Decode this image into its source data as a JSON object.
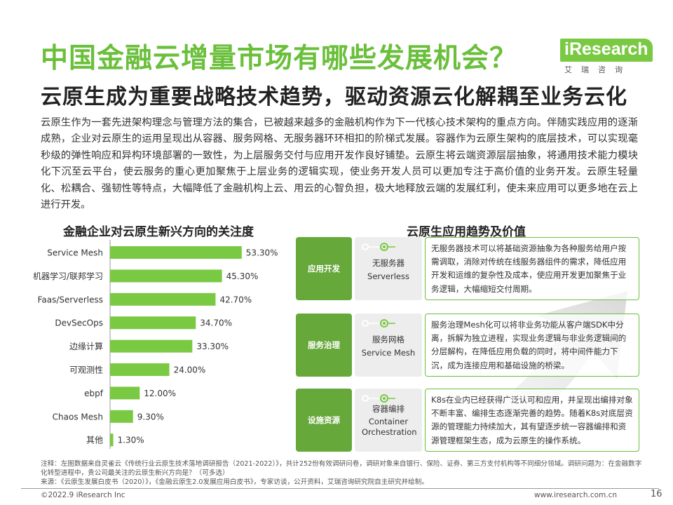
{
  "header": {
    "title": "中国金融云增量市场有哪些发展机会？",
    "subtitle": "云原生成为重要战略技术趋势，驱动资源云化解耦至业务云化"
  },
  "logo": {
    "name": "iResearch",
    "sub": "艾瑞咨询"
  },
  "intro": "云原生作为一套先进架构理念与管理方法的集合，已被越来越多的金融机构作为下一代核心技术架构的重点方向。伴随实践应用的逐渐成熟，企业对云原生的运用呈现出从容器、服务网格、无服务器环环相扣的阶梯式发展。容器作为云原生架构的底层技术，可以实现毫秒级的弹性响应和异构环境部署的一致性，为上层服务交付与应用开发作良好铺垫。云原生将云端资源层层抽象，将通用技术能力模块化下沉至云平台，使云服务的重心更加聚焦于上层业务的逻辑实现，使业务开发人员可以更加专注于高价值的业务开发。云原生轻量化、松耦合、强韧性等特点，大幅降低了金融机构上云、用云的心智负担，极大地释放云端的发展红利，使未来应用可以更多地在云上进行开发。",
  "chart_data": {
    "type": "bar",
    "orientation": "horizontal",
    "title": "金融企业对云原生新兴方向的关注度",
    "categories": [
      "Service Mesh",
      "机器学习/联邦学习",
      "Faas/Serverless",
      "DevSecOps",
      "边缘计算",
      "可观测性",
      "ebpf",
      "Chaos Mesh",
      "其他"
    ],
    "values": [
      53.3,
      45.3,
      42.7,
      34.7,
      33.3,
      24.0,
      12.0,
      9.3,
      1.3
    ],
    "value_labels": [
      "53.30%",
      "45.30%",
      "42.70%",
      "34.70%",
      "33.30%",
      "24.00%",
      "12.00%",
      "9.30%",
      "1.30%"
    ],
    "xlim": [
      0,
      60
    ],
    "bar_color": "#7ac943",
    "xlabel": "",
    "ylabel": ""
  },
  "trends": {
    "title": "云原生应用趋势及价值",
    "rows": [
      {
        "label": "应用开发",
        "name_cn": "无服务器",
        "name_en": "Serverless",
        "desc": "无服务器技术可以将基础资源抽象为各种服务给用户按需调取，消除对传统在线服务器组件的需求，降低应用开发和运维的复杂性及成本，使应用开发更加聚焦于业务逻辑，大幅缩短交付周期。"
      },
      {
        "label": "服务治理",
        "name_cn": "服务网格",
        "name_en": "Service Mesh",
        "desc": "服务治理Mesh化可以将非业务功能从客户端SDK中分离，拆解为独立进程，实现业务逻辑与非业务逻辑间的分层解构，在降低应用负载的同时，将中间件能力下沉，成为连接应用和基础设施的桥梁。"
      },
      {
        "label": "设施资源",
        "name_cn": "容器编排",
        "name_en": "Container Orchestration",
        "desc": "K8s在业内已经获得广泛认可和应用，并呈现出编排对象不断丰富、编排生态逐渐完善的趋势。随着K8s对底层资源的管理能力持续加大，其有望逐步统一容器编排和资源管理框架生态，成为云原生的操作系统。"
      }
    ]
  },
  "notes": {
    "line1": "注释：左图数据来自灵雀云《传统行业云原生技术落地调研报告（2021-2022）》，共计252份有效调研问卷，调研对象来自银行、保险、证券、第三方支付机构等不同细分领域。调研问题为：在金融数字化转型进程中，贵公司最关注的云原生新兴方向是？（可多选）",
    "line2": "来源：《云原生发展白皮书（2020）》，《金融云原生2.0发展应用白皮书》，专家访谈，公开资料，艾瑞咨询研究院自主研究并绘制。"
  },
  "footer": {
    "copyright": "©2022.9 iResearch Inc",
    "url": "www.iresearch.com.cn",
    "page": "16"
  },
  "colors": {
    "accent": "#6abf3b",
    "dark_green": "#67a83b",
    "bar": "#7ac943"
  }
}
